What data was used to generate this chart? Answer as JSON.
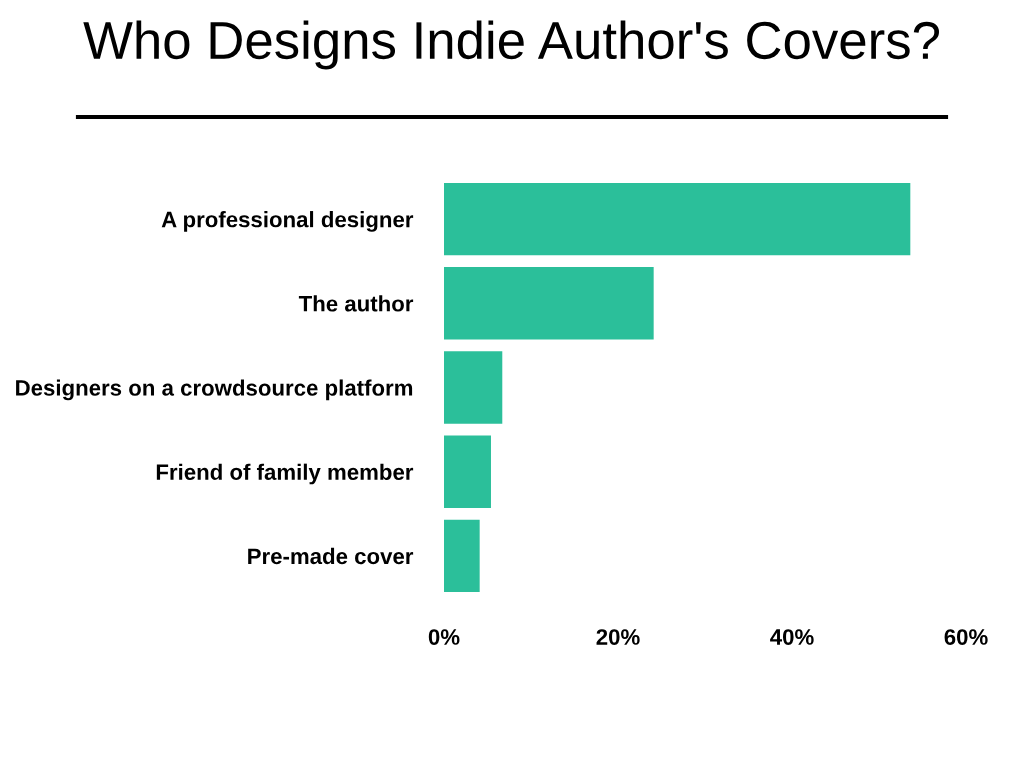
{
  "chart_data": {
    "type": "bar",
    "orientation": "horizontal",
    "title": "Who Designs Indie Author's Covers?",
    "categories": [
      "A professional designer",
      "The author",
      "Designers on a crowdsource platform",
      "Friend of family member",
      "Pre-made cover"
    ],
    "values": [
      53.6,
      24.1,
      6.7,
      5.4,
      4.1
    ],
    "color": "#2bbf9a",
    "xlim": [
      0,
      60
    ],
    "xticks": [
      {
        "value": 0,
        "label": "0%"
      },
      {
        "value": 20,
        "label": "20%"
      },
      {
        "value": 40,
        "label": "40%"
      },
      {
        "value": 60,
        "label": "60%"
      }
    ],
    "grid": false,
    "legend": false
  }
}
